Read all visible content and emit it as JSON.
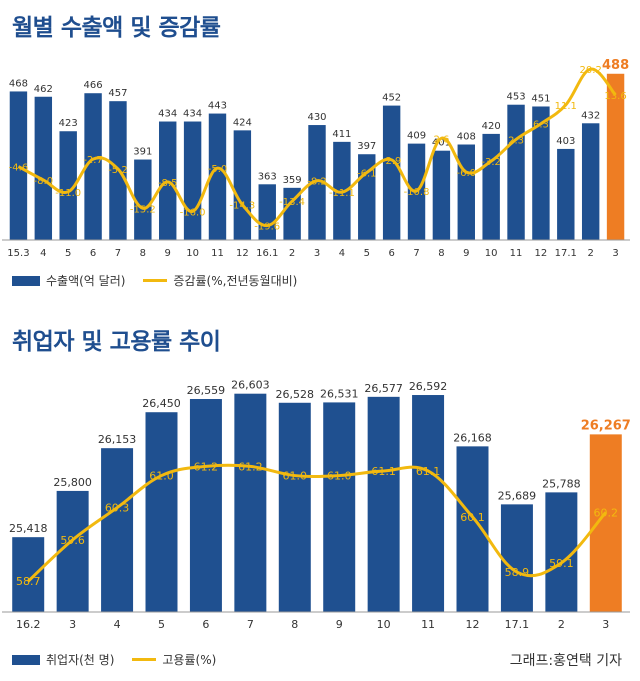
{
  "chart_data": [
    {
      "type": "bar",
      "title": "월별 수출액 및 증감률",
      "categories": [
        "15.3",
        "4",
        "5",
        "6",
        "7",
        "8",
        "9",
        "10",
        "11",
        "12",
        "16.1",
        "2",
        "3",
        "4",
        "5",
        "6",
        "7",
        "8",
        "9",
        "10",
        "11",
        "12",
        "17.1",
        "2",
        "3"
      ],
      "series": [
        {
          "name": "수출액(억 달러)",
          "type": "bar",
          "values": [
            468,
            462,
            423,
            466,
            457,
            391,
            434,
            434,
            443,
            424,
            363,
            359,
            430,
            411,
            397,
            452,
            409,
            401,
            408,
            420,
            453,
            451,
            403,
            432,
            488
          ]
        },
        {
          "name": "증감률(%,전년동월대비)",
          "type": "line",
          "values": [
            -4.6,
            -8.0,
            -11.0,
            -2.7,
            -5.2,
            -15.2,
            -8.5,
            -16.0,
            -5.0,
            -14.3,
            -19.6,
            -13.4,
            -8.2,
            -11.1,
            -6.1,
            -2.9,
            -10.8,
            2.6,
            -6.0,
            -3.2,
            2.3,
            6.3,
            11.1,
            20.2,
            13.6
          ]
        }
      ],
      "bar_labels": [
        "468",
        "462",
        "423",
        "466",
        "457",
        "391",
        "434",
        "434",
        "443",
        "424",
        "363",
        "359",
        "430",
        "411",
        "397",
        "452",
        "409",
        "401",
        "408",
        "420",
        "453",
        "451",
        "403",
        "432",
        "488"
      ],
      "line_labels": [
        "-4.6",
        "-8.0",
        "-11.0",
        "-2.7",
        "-5.2",
        "-15.2",
        "-8.5",
        "-16.0",
        "-5.0",
        "-14.3",
        "-19.6",
        "-13.4",
        "-8.2",
        "-11.1",
        "-6.1",
        "-2.9",
        "-10.8",
        "2.6",
        "-6.0",
        "-3.2",
        "2.3",
        "6.3",
        "11.1",
        "20.2",
        "13.6"
      ],
      "bar_ylim": [
        300,
        490
      ],
      "line_ylim": [
        -22,
        22
      ],
      "highlight_last": true,
      "legend_position": "bottom-left",
      "grid": false
    },
    {
      "type": "bar",
      "title": "취업자 및 고용률 추이",
      "categories": [
        "16.2",
        "3",
        "4",
        "5",
        "6",
        "7",
        "8",
        "9",
        "10",
        "11",
        "12",
        "17.1",
        "2",
        "3"
      ],
      "series": [
        {
          "name": "취업자(천 명)",
          "type": "bar",
          "values": [
            25418,
            25800,
            26153,
            26450,
            26559,
            26603,
            26528,
            26531,
            26577,
            26592,
            26168,
            25689,
            25788,
            26267
          ]
        },
        {
          "name": "고용률(%)",
          "type": "line",
          "values": [
            58.7,
            59.6,
            60.3,
            61.0,
            61.2,
            61.2,
            61.0,
            61.0,
            61.1,
            61.1,
            60.1,
            58.9,
            59.1,
            60.2
          ]
        }
      ],
      "bar_labels": [
        "25,418",
        "25,800",
        "26,153",
        "26,450",
        "26,559",
        "26,603",
        "26,528",
        "26,531",
        "26,577",
        "26,592",
        "26,168",
        "25,689",
        "25,788",
        "26,267"
      ],
      "line_labels": [
        "58.7",
        "59.6",
        "60.3",
        "61.0",
        "61.2",
        "61.2",
        "61.0",
        "61.0",
        "61.1",
        "61.1",
        "60.1",
        "58.9",
        "59.1",
        "60.2"
      ],
      "bar_ylim": [
        24800,
        26650
      ],
      "line_ylim": [
        58.4,
        61.6
      ],
      "highlight_last": true,
      "legend_position": "bottom-left",
      "grid": false
    }
  ],
  "colors": {
    "bar": "#1f5090",
    "bar_highlight": "#ee7d23",
    "line": "#f2b90f",
    "bar_label": "#333333",
    "line_label": "#f2b90f",
    "title": "#1f4e8f"
  },
  "credit": "그래프:홍연택 기자"
}
